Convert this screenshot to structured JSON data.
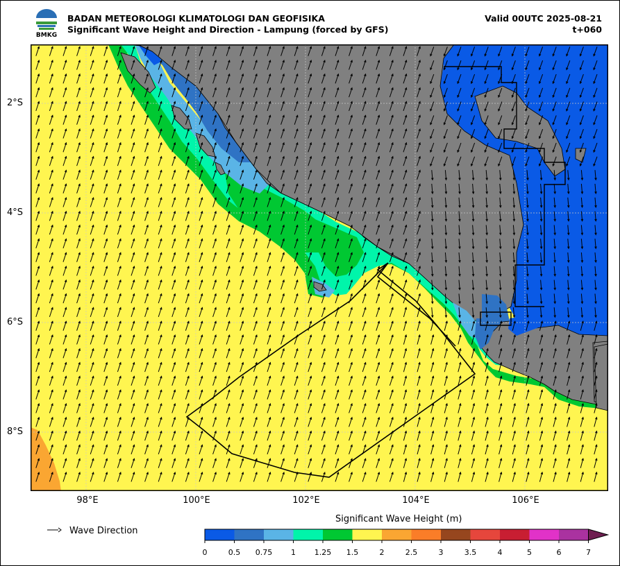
{
  "header": {
    "agency": "BADAN METEOROLOGI KLIMATOLOGI DAN GEOFISIKA",
    "title": "Significant Wave Height and Direction - Lampung (forced by GFS)",
    "valid": "Valid 00UTC 2025-08-21",
    "lead": "t+060",
    "logo_text": "BMKG"
  },
  "map": {
    "lat_ticks": [
      "2°S",
      "4°S",
      "6°S",
      "8°S"
    ],
    "lon_ticks": [
      "98°E",
      "100°E",
      "102°E",
      "104°E",
      "106°E"
    ],
    "land_color": "#808080"
  },
  "legend": {
    "arrow_label": "Wave Direction"
  },
  "colorbar": {
    "title": "Significant Wave Height (m)",
    "labels": [
      "0",
      "0.5",
      "0.75",
      "1",
      "1.25",
      "1.5",
      "2",
      "2.5",
      "3",
      "3.5",
      "4",
      "5",
      "6",
      "7"
    ],
    "colors": [
      "#0a5ae6",
      "#2f73c4",
      "#5ab4e6",
      "#00f5aa",
      "#00c832",
      "#fff550",
      "#faa632",
      "#fa7d28",
      "#96461e",
      "#e6463c",
      "#c81e32",
      "#e132c8",
      "#aa32a0"
    ],
    "extend_color": "#6e1e50"
  }
}
